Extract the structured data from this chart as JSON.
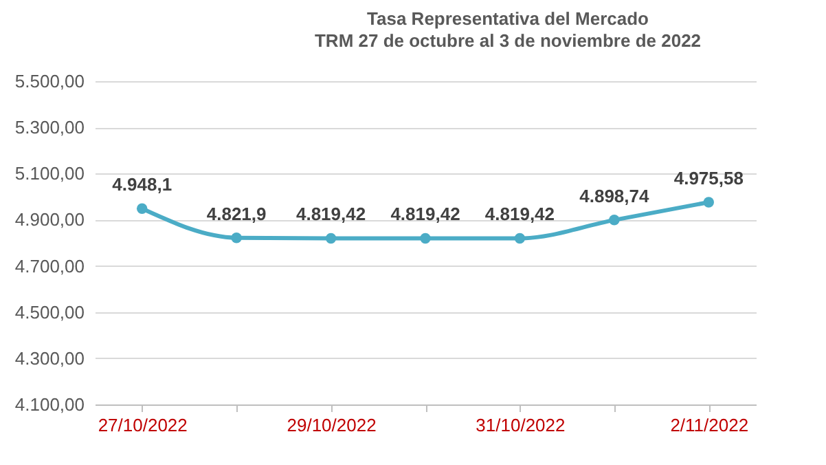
{
  "chart_data": {
    "type": "line",
    "title": "Tasa Representativa del Mercado",
    "subtitle": "TRM 27 de octubre al 3 de noviembre de 2022",
    "categories": [
      "27/10/2022",
      null,
      "29/10/2022",
      null,
      "31/10/2022",
      null,
      "2/11/2022"
    ],
    "series": [
      {
        "color": "#4bacc6",
        "values": [
          4948.1,
          4821.9,
          4819.42,
          4819.42,
          4819.42,
          4898.74,
          4975.58
        ],
        "value_labels": [
          "4.948,1",
          "4.821,9",
          "4.819,42",
          "4.819,42",
          "4.819,42",
          "4.898,74",
          "4.975,58"
        ]
      }
    ],
    "ylim": [
      4100,
      5500
    ],
    "yticks": [
      {
        "value": 4100,
        "label": "4.100,00"
      },
      {
        "value": 4300,
        "label": "4.300,00"
      },
      {
        "value": 4500,
        "label": "4.500,00"
      },
      {
        "value": 4700,
        "label": "4.700,00"
      },
      {
        "value": 4900,
        "label": "4.900,00"
      },
      {
        "value": 5100,
        "label": "5.100,00"
      },
      {
        "value": 5300,
        "label": "5.300,00"
      },
      {
        "value": 5500,
        "label": "5.500,00"
      }
    ],
    "grid": "y",
    "marker": "circle",
    "line_style": "solid"
  }
}
